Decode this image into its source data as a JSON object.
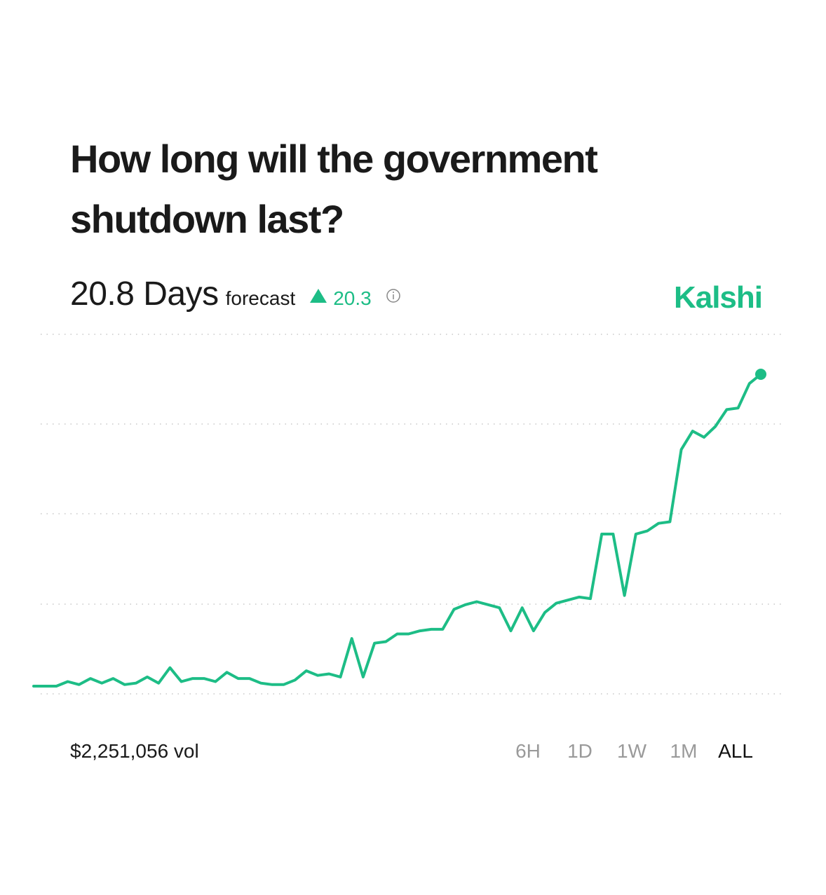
{
  "header": {
    "title": "How long will the government shutdown last?",
    "forecast_value": "20.8 Days",
    "forecast_word": "forecast",
    "change": "20.3",
    "brand": "Kalshi"
  },
  "footer": {
    "volume": "$2,251,056 vol",
    "ranges": [
      "6H",
      "1D",
      "1W",
      "1M",
      "ALL"
    ],
    "active_range": "ALL"
  },
  "chart_data": {
    "type": "line",
    "color": "#1dbd86",
    "ylim": [
      0,
      23.4
    ],
    "values": [
      0.5,
      0.5,
      0.5,
      0.8,
      0.6,
      1.0,
      0.7,
      1.0,
      0.6,
      0.7,
      1.1,
      0.7,
      1.7,
      0.8,
      1.0,
      1.0,
      0.8,
      1.4,
      1.0,
      1.0,
      0.7,
      0.6,
      0.6,
      0.9,
      1.5,
      1.2,
      1.3,
      1.1,
      3.6,
      1.1,
      3.3,
      3.4,
      3.9,
      3.9,
      4.1,
      4.2,
      4.2,
      5.5,
      5.8,
      6.0,
      5.8,
      5.6,
      4.1,
      5.6,
      4.1,
      5.3,
      5.9,
      6.1,
      6.3,
      6.2,
      10.4,
      10.4,
      6.4,
      10.4,
      10.6,
      11.1,
      11.2,
      15.9,
      17.1,
      16.7,
      17.4,
      18.5,
      18.6,
      20.2,
      20.8
    ]
  }
}
